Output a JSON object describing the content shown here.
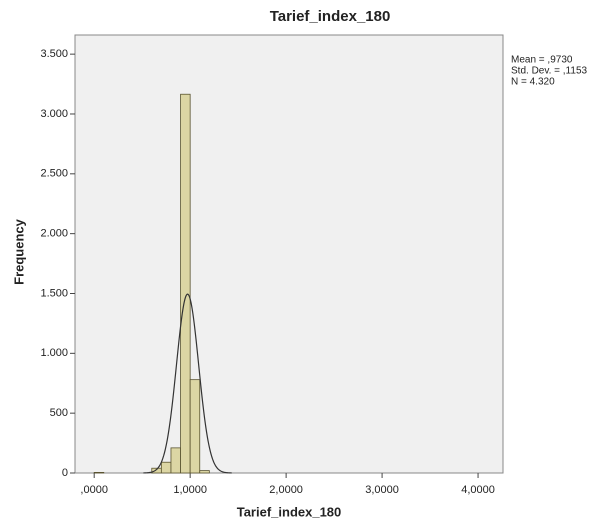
{
  "chart_data": {
    "type": "histogram",
    "title": "Tarief_index_180",
    "x_label": "Tarief_index_180",
    "y_label": "Frequency",
    "bins": [
      0.0,
      0.1,
      0.2,
      0.3,
      0.4,
      0.5,
      0.6,
      0.7,
      0.8,
      0.9,
      1.0,
      1.1,
      1.2
    ],
    "values": [
      5,
      0,
      0,
      0,
      0,
      0,
      40,
      90,
      210,
      3165,
      780,
      20
    ],
    "color": "#dcd6a4",
    "edge_color": "#5a5430",
    "background": "#f0f0f0",
    "xlim": [
      -0.2,
      4.26
    ],
    "ylim": [
      0,
      3660
    ],
    "xticks": [
      {
        "value": 0,
        "label": ",0000"
      },
      {
        "value": 1,
        "label": "1,0000"
      },
      {
        "value": 2,
        "label": "2,0000"
      },
      {
        "value": 3,
        "label": "3,0000"
      },
      {
        "value": 4,
        "label": "4,0000"
      }
    ],
    "yticks": [
      0,
      500,
      {
        "value": 1000,
        "label": "1.000"
      },
      {
        "value": 1500,
        "label": "1.500"
      },
      {
        "value": 2000,
        "label": "2.000"
      },
      {
        "value": 2500,
        "label": "2.500"
      },
      {
        "value": 3000,
        "label": "3.000"
      },
      {
        "value": 3500,
        "label": "3.500"
      }
    ],
    "mean": 0.973,
    "std_dev": 0.1153,
    "n": 4320,
    "stat_labels": [
      "Mean = ,9730",
      "Std. Dev. = ,1153",
      "N = 4.320"
    ],
    "curve_color": "#333333"
  }
}
